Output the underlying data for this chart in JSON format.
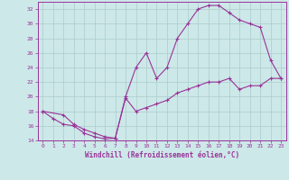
{
  "xlabel": "Windchill (Refroidissement éolien,°C)",
  "bg_color": "#cde8e8",
  "grid_color": "#aacccc",
  "line_color": "#993399",
  "xlim": [
    -0.5,
    23.5
  ],
  "ylim": [
    14,
    33
  ],
  "xticks": [
    0,
    1,
    2,
    3,
    4,
    5,
    6,
    7,
    8,
    9,
    10,
    11,
    12,
    13,
    14,
    15,
    16,
    17,
    18,
    19,
    20,
    21,
    22,
    23
  ],
  "yticks": [
    14,
    16,
    18,
    20,
    22,
    24,
    26,
    28,
    30,
    32
  ],
  "curve1_x": [
    0,
    1,
    2,
    3,
    4,
    5,
    6,
    7,
    8,
    9,
    10,
    11,
    12,
    13,
    14,
    15,
    16,
    17,
    18,
    19,
    20,
    21,
    22,
    23
  ],
  "curve1_y": [
    18,
    17,
    16.2,
    16,
    15,
    14.5,
    14.2,
    14.3,
    20,
    24,
    26,
    22.5,
    24,
    28,
    30,
    32,
    32.5,
    32.5,
    31.5,
    30.5,
    30,
    29.5,
    25,
    22.5
  ],
  "curve2_x": [
    0,
    2,
    3,
    4,
    5,
    6,
    7,
    8,
    9,
    10,
    11,
    12,
    13,
    14,
    15,
    16,
    17,
    18,
    19,
    20,
    21,
    22,
    23
  ],
  "curve2_y": [
    18,
    17.5,
    16.2,
    15.5,
    15,
    14.5,
    14.3,
    19.8,
    18,
    18.5,
    19,
    19.5,
    20.5,
    21,
    21.5,
    22,
    22,
    22.5,
    21,
    21.5,
    21.5,
    22.5,
    22.5
  ]
}
